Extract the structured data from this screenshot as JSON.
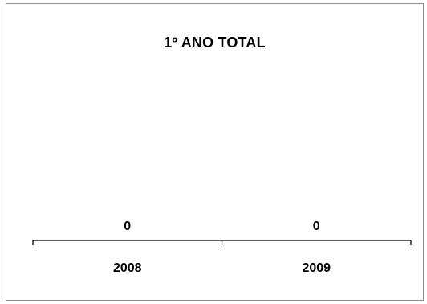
{
  "chart_data": {
    "type": "bar",
    "title": "1º ANO TOTAL",
    "xlabel": "",
    "ylabel": "",
    "categories": [
      "2008",
      "2009"
    ],
    "values": [
      0,
      0
    ],
    "data_labels": [
      "0",
      "0"
    ],
    "grid": false,
    "legend": "none"
  }
}
